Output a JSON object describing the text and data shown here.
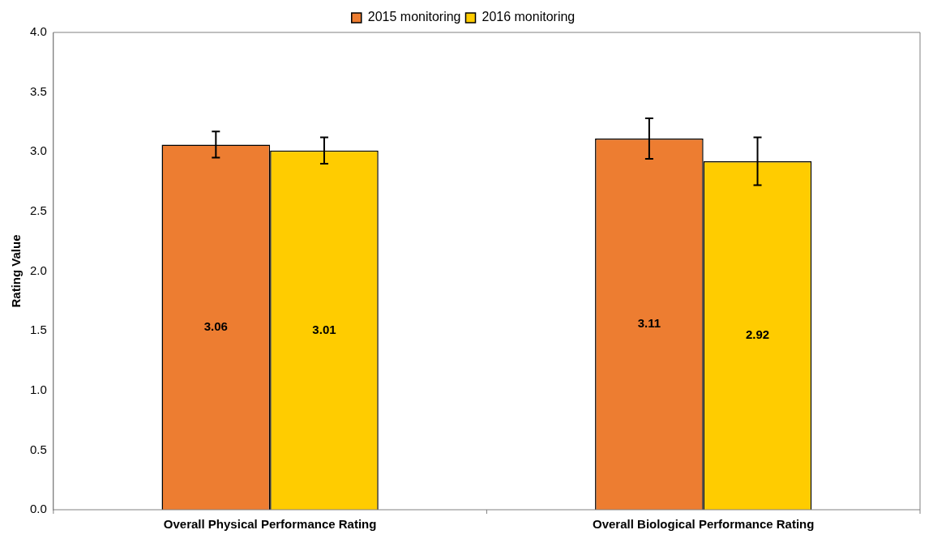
{
  "chart_data": {
    "type": "bar",
    "categories": [
      "Overall Physical Performance Rating",
      "Overall Biological Performance Rating"
    ],
    "ylabel": "Rating Value",
    "ylim": [
      0,
      4
    ],
    "yticks": [
      {
        "value": 0,
        "label": "0.0"
      },
      {
        "value": 0.5,
        "label": "0.5"
      },
      {
        "value": 1,
        "label": "1.0"
      },
      {
        "value": 1.5,
        "label": "1.5"
      },
      {
        "value": 2,
        "label": "2.0"
      },
      {
        "value": 2.5,
        "label": "2.5"
      },
      {
        "value": 3,
        "label": "3.0"
      },
      {
        "value": 3.5,
        "label": "3.5"
      },
      {
        "value": 4,
        "label": "4.0"
      }
    ],
    "series": [
      {
        "name": "2015 monitoring",
        "color": "#ed7d31",
        "values": [
          3.06,
          3.11
        ],
        "errors": [
          0.11,
          0.17
        ]
      },
      {
        "name": "2016 monitoring",
        "color": "#ffcc00",
        "values": [
          3.01,
          2.92
        ],
        "errors": [
          0.11,
          0.2
        ]
      }
    ],
    "data_labels": true,
    "legend": "top",
    "grid": false
  }
}
